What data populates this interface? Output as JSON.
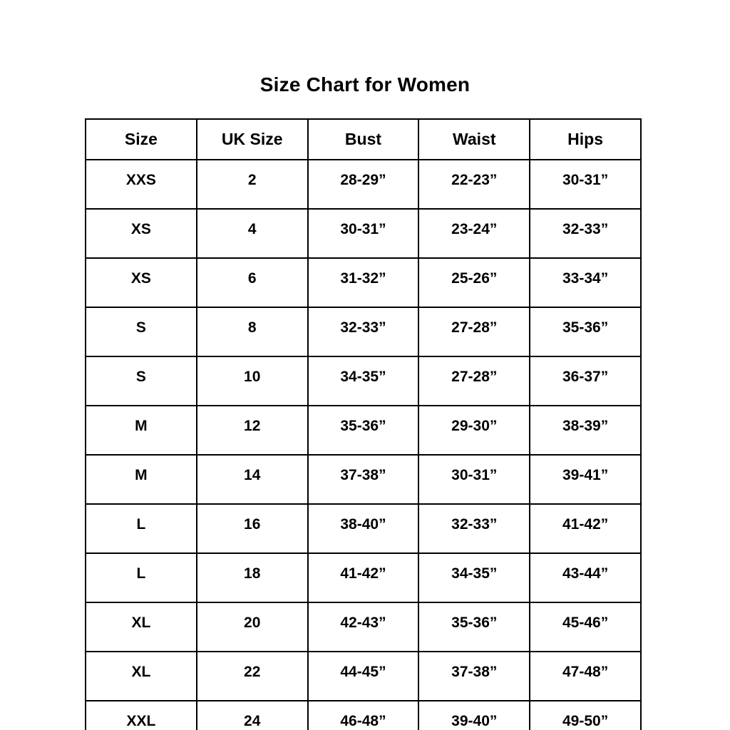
{
  "page_title": "Size Chart for Women",
  "chart_data": {
    "type": "table",
    "title": "Size Chart for Women",
    "columns": [
      "Size",
      "UK Size",
      "Bust",
      "Waist",
      "Hips"
    ],
    "rows": [
      [
        "XXS",
        "2",
        "28-29”",
        "22-23”",
        "30-31”"
      ],
      [
        "XS",
        "4",
        "30-31”",
        "23-24”",
        "32-33”"
      ],
      [
        "XS",
        "6",
        "31-32”",
        "25-26”",
        "33-34”"
      ],
      [
        "S",
        "8",
        "32-33”",
        "27-28”",
        "35-36”"
      ],
      [
        "S",
        "10",
        "34-35”",
        "27-28”",
        "36-37”"
      ],
      [
        "M",
        "12",
        "35-36”",
        "29-30”",
        "38-39”"
      ],
      [
        "M",
        "14",
        "37-38”",
        "30-31”",
        "39-41”"
      ],
      [
        "L",
        "16",
        "38-40”",
        "32-33”",
        "41-42”"
      ],
      [
        "L",
        "18",
        "41-42”",
        "34-35”",
        "43-44”"
      ],
      [
        "XL",
        "20",
        "42-43”",
        "35-36”",
        "45-46”"
      ],
      [
        "XL",
        "22",
        "44-45”",
        "37-38”",
        "47-48”"
      ],
      [
        "XXL",
        "24",
        "46-48”",
        "39-40”",
        "49-50”"
      ]
    ],
    "text_color": "#000000",
    "background_color": "#ffffff",
    "border_color": "#000000",
    "legend": false,
    "grid": true
  }
}
